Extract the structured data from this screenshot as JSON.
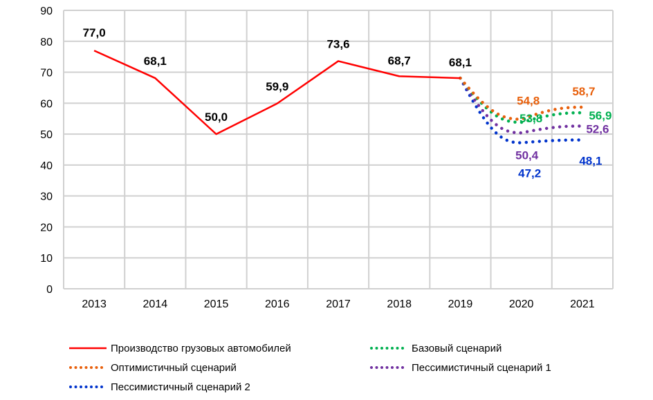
{
  "chart_data": {
    "type": "line",
    "categories": [
      "2013",
      "2014",
      "2015",
      "2016",
      "2017",
      "2018",
      "2019",
      "2020",
      "2021"
    ],
    "ylim": [
      0,
      90
    ],
    "yticks": [
      "0",
      "10",
      "20",
      "30",
      "40",
      "50",
      "60",
      "70",
      "80",
      "90"
    ],
    "grid": true,
    "legend_position": "bottom",
    "series": [
      {
        "name": "Производство грузовых автомобилей",
        "color": "#FF0000",
        "style": "solid",
        "x": [
          "2013",
          "2014",
          "2015",
          "2016",
          "2017",
          "2018",
          "2019"
        ],
        "values": [
          77.0,
          68.1,
          50.0,
          59.9,
          73.6,
          68.7,
          68.1
        ],
        "labels": [
          "77,0",
          "68,1",
          "50,0",
          "59,9",
          "73,6",
          "68,7",
          "68,1"
        ]
      },
      {
        "name": "Базовый сценарий",
        "color": "#00B050",
        "style": "dotted",
        "x": [
          "2019",
          "2020",
          "2021"
        ],
        "values": [
          68.1,
          53.8,
          56.9
        ],
        "labels": [
          "",
          "53,8",
          "56,9"
        ]
      },
      {
        "name": "Оптимистичный сценарий",
        "color": "#E8600C",
        "style": "dotted",
        "x": [
          "2019",
          "2020",
          "2021"
        ],
        "values": [
          68.1,
          54.8,
          58.7
        ],
        "labels": [
          "",
          "54,8",
          "58,7"
        ]
      },
      {
        "name": "Пессимистичный сценарий 1",
        "color": "#7030A0",
        "style": "dotted",
        "x": [
          "2019",
          "2020",
          "2021"
        ],
        "values": [
          68.1,
          50.4,
          52.6
        ],
        "labels": [
          "",
          "50,4",
          "52,6"
        ]
      },
      {
        "name": "Пессимистичный сценарий 2",
        "color": "#0033CC",
        "style": "dotted",
        "x": [
          "2019",
          "2020",
          "2021"
        ],
        "values": [
          68.1,
          47.2,
          48.1
        ],
        "labels": [
          "",
          "47,2",
          "48,1"
        ]
      }
    ]
  }
}
